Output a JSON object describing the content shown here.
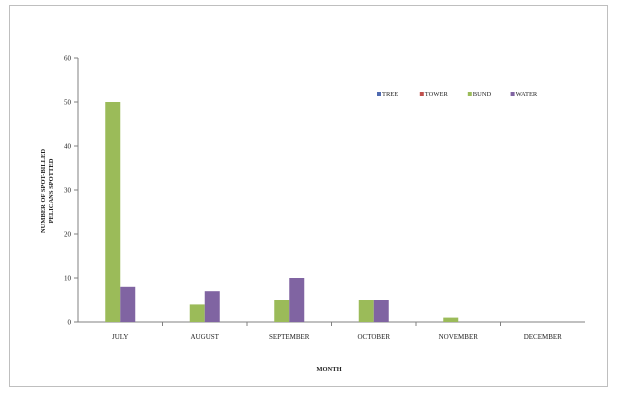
{
  "chart_data": {
    "type": "bar",
    "title": "",
    "xlabel": "MONTH",
    "ylabel_lines": [
      "NUMBER OF SPOT-BILLED",
      "PELICANS SPOTTED"
    ],
    "ylim": [
      0,
      60
    ],
    "yticks": [
      0,
      10,
      20,
      30,
      40,
      50,
      60
    ],
    "categories": [
      "JULY",
      "AUGUST",
      "SEPTEMBER",
      "OCTOBER",
      "NOVEMBER",
      "DECEMBER"
    ],
    "series": [
      {
        "name": "TREE",
        "color": "#4f6ab0",
        "values": [
          0,
          0,
          0,
          0,
          0,
          0
        ]
      },
      {
        "name": "TOWER",
        "color": "#c0504d",
        "values": [
          0,
          0,
          0,
          0,
          0,
          0
        ]
      },
      {
        "name": "BUND",
        "color": "#9bbb59",
        "values": [
          50,
          4,
          5,
          5,
          1,
          0
        ]
      },
      {
        "name": "WATER",
        "color": "#8064a2",
        "values": [
          8,
          7,
          10,
          5,
          0,
          0
        ]
      }
    ],
    "legend_position": "top-right",
    "grid": false
  }
}
